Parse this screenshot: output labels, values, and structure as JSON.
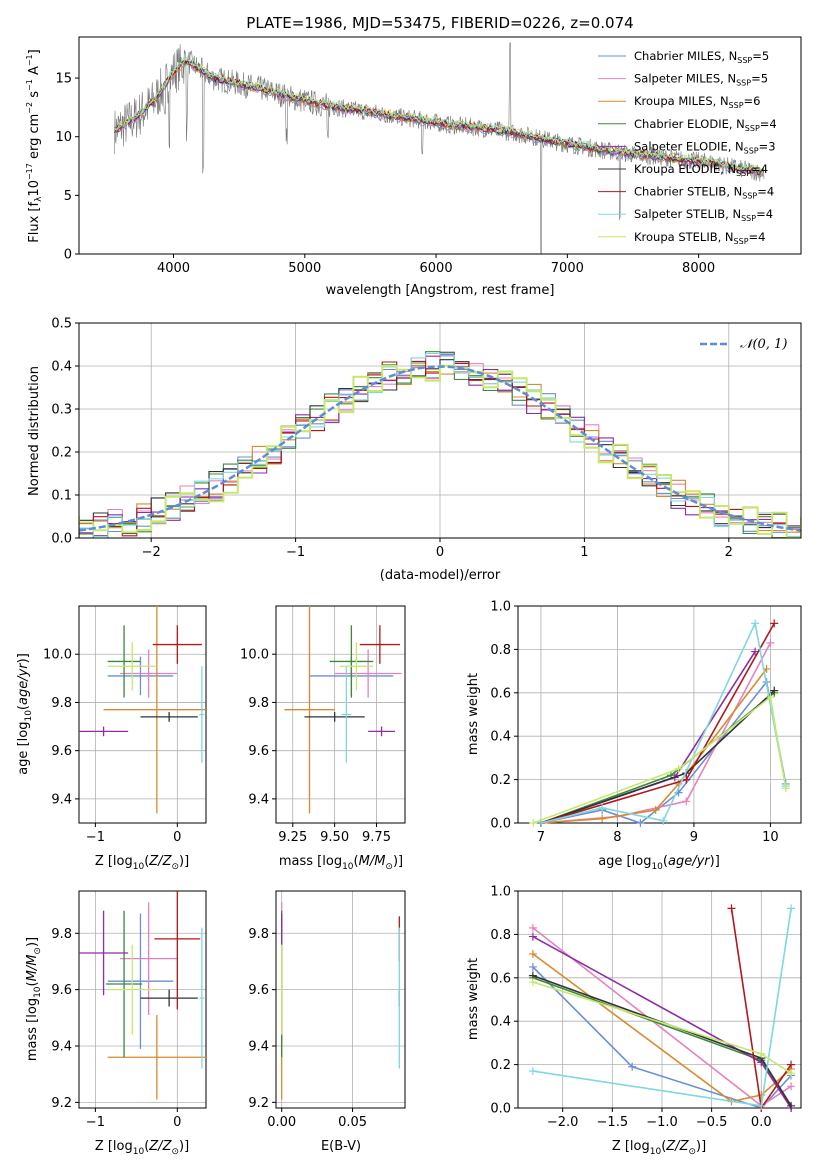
{
  "colors": [
    "#6a8fd6",
    "#e582bd",
    "#d98a2e",
    "#3b8a3b",
    "#8e2ca6",
    "#333333",
    "#b3171b",
    "#7fd7e0",
    "#c5e86c"
  ],
  "chart_data": [
    {
      "id": "spectrum",
      "type": "line",
      "title": "PLATE=1986, MJD=53475, FIBERID=0226, z=0.074",
      "xlabel": "wavelength [Angstrom, rest frame]",
      "ylabel": "Flux [fλ10⁻¹⁷ erg cm⁻² s⁻¹ A⁻¹]",
      "xlim": [
        3280,
        8780
      ],
      "ylim": [
        0,
        18.5
      ],
      "xticks": [
        4000,
        5000,
        6000,
        7000,
        8000
      ],
      "yticks": [
        0,
        5,
        10,
        15
      ],
      "legend_position": "top-right",
      "data_continuum": {
        "x": [
          3550,
          3700,
          3850,
          4000,
          4100,
          4300,
          4500,
          4700,
          4900,
          5100,
          5300,
          5500,
          5700,
          5900,
          6100,
          6300,
          6500,
          6700,
          6900,
          7100,
          7300,
          7500,
          7700,
          7900,
          8100,
          8300,
          8500
        ],
        "y": [
          10.5,
          11.5,
          13.0,
          15.5,
          16.5,
          15.0,
          14.5,
          14.0,
          13.3,
          12.8,
          12.4,
          12.1,
          11.7,
          11.4,
          11.0,
          10.8,
          10.5,
          10.1,
          9.6,
          9.2,
          8.8,
          8.5,
          8.3,
          8.0,
          7.8,
          7.3,
          6.9
        ]
      },
      "model_legend": [
        "Chabrier MILES, N_SSP=5",
        "Salpeter MILES, N_SSP=5",
        "Kroupa MILES, N_SSP=6",
        "Chabrier ELODIE, N_SSP=4",
        "Salpeter ELODIE, N_SSP=3",
        "Kroupa ELODIE, N_SSP=4",
        "Chabrier STELIB, N_SSP=4",
        "Salpeter STELIB, N_SSP=4",
        "Kroupa STELIB, N_SSP=4"
      ]
    },
    {
      "id": "residuals",
      "type": "step",
      "xlabel": "(data-model)/error",
      "ylabel": "Normed distribution",
      "xlim": [
        -2.5,
        2.5
      ],
      "ylim": [
        0,
        0.5
      ],
      "xticks": [
        -2,
        -1,
        0,
        1,
        2
      ],
      "yticks": [
        0.0,
        0.1,
        0.2,
        0.3,
        0.4,
        0.5
      ],
      "reference_curve": "N(0,1)",
      "legend_position": "top-right"
    },
    {
      "id": "age_vs_Z",
      "type": "errorbar",
      "xlabel": "Z [log10(Z/Z⊙)]",
      "ylabel": "age  [log10(age/yr)]",
      "xlim": [
        -1.2,
        0.35
      ],
      "ylim": [
        9.3,
        10.2
      ],
      "xticks": [
        -1,
        0
      ],
      "yticks": [
        9.4,
        9.6,
        9.8,
        10.0
      ],
      "points": [
        {
          "x": -0.45,
          "y": 9.91,
          "xerr": 0.4,
          "yerr": 0.08,
          "c": 0
        },
        {
          "x": -0.35,
          "y": 9.92,
          "xerr": 0.35,
          "yerr": 0.1,
          "c": 1
        },
        {
          "x": -0.25,
          "y": 9.77,
          "xerr": 0.65,
          "yerr": 0.43,
          "c": 2
        },
        {
          "x": -0.65,
          "y": 9.97,
          "xerr": 0.2,
          "yerr": 0.15,
          "c": 3
        },
        {
          "x": -0.9,
          "y": 9.68,
          "xerr": 0.3,
          "yerr": 0.02,
          "c": 4
        },
        {
          "x": -0.1,
          "y": 9.74,
          "xerr": 0.35,
          "yerr": 0.02,
          "c": 5
        },
        {
          "x": 0.0,
          "y": 10.04,
          "xerr": 0.3,
          "yerr": 0.08,
          "c": 6
        },
        {
          "x": 0.3,
          "y": 9.75,
          "xerr": 0.03,
          "yerr": 0.2,
          "c": 7
        },
        {
          "x": -0.55,
          "y": 9.95,
          "xerr": 0.3,
          "yerr": 0.1,
          "c": 8
        }
      ]
    },
    {
      "id": "age_vs_mass",
      "type": "errorbar",
      "xlabel": "mass [log10(M/M⊙)]",
      "ylabel": "",
      "xlim": [
        9.15,
        9.92
      ],
      "ylim": [
        9.3,
        10.2
      ],
      "xticks": [
        9.25,
        9.5,
        9.75
      ],
      "yticks": [
        9.4,
        9.6,
        9.8,
        10.0
      ],
      "points": [
        {
          "x": 9.6,
          "y": 9.91,
          "xerr": 0.25,
          "yerr": 0.08,
          "c": 0
        },
        {
          "x": 9.7,
          "y": 9.92,
          "xerr": 0.2,
          "yerr": 0.1,
          "c": 1
        },
        {
          "x": 9.35,
          "y": 9.77,
          "xerr": 0.15,
          "yerr": 0.43,
          "c": 2
        },
        {
          "x": 9.6,
          "y": 9.97,
          "xerr": 0.13,
          "yerr": 0.15,
          "c": 3
        },
        {
          "x": 9.78,
          "y": 9.68,
          "xerr": 0.08,
          "yerr": 0.02,
          "c": 4
        },
        {
          "x": 9.5,
          "y": 9.74,
          "xerr": 0.18,
          "yerr": 0.02,
          "c": 5
        },
        {
          "x": 9.77,
          "y": 10.04,
          "xerr": 0.12,
          "yerr": 0.08,
          "c": 6
        },
        {
          "x": 9.57,
          "y": 9.75,
          "xerr": 0.03,
          "yerr": 0.2,
          "c": 7
        },
        {
          "x": 9.63,
          "y": 9.95,
          "xerr": 0.1,
          "yerr": 0.1,
          "c": 8
        }
      ]
    },
    {
      "id": "mass_weight_vs_age",
      "type": "line",
      "xlabel": "age  [log10(age/yr)]",
      "ylabel": "mass weight",
      "xlim": [
        6.7,
        10.4
      ],
      "ylim": [
        0,
        1.0
      ],
      "xticks": [
        7,
        8,
        9,
        10
      ],
      "yticks": [
        0.0,
        0.2,
        0.4,
        0.6,
        0.8,
        1.0
      ],
      "series": [
        {
          "c": 0,
          "x": [
            7.0,
            7.8,
            8.3,
            8.8,
            9.95,
            10.2
          ],
          "y": [
            0.0,
            0.06,
            0.0,
            0.14,
            0.65,
            0.18
          ]
        },
        {
          "c": 1,
          "x": [
            7.0,
            8.0,
            8.9,
            10.0
          ],
          "y": [
            0.0,
            0.03,
            0.1,
            0.83
          ]
        },
        {
          "c": 2,
          "x": [
            7.0,
            7.8,
            8.5,
            8.8,
            9.95
          ],
          "y": [
            0.0,
            0.02,
            0.06,
            0.18,
            0.71
          ]
        },
        {
          "c": 3,
          "x": [
            7.0,
            8.7,
            10.05
          ],
          "y": [
            0.0,
            0.22,
            0.6
          ]
        },
        {
          "c": 4,
          "x": [
            7.0,
            8.75,
            9.8
          ],
          "y": [
            0.0,
            0.21,
            0.79
          ]
        },
        {
          "c": 5,
          "x": [
            7.0,
            8.9,
            10.05
          ],
          "y": [
            0.0,
            0.23,
            0.61
          ]
        },
        {
          "c": 6,
          "x": [
            7.0,
            8.9,
            10.05
          ],
          "y": [
            0.0,
            0.2,
            0.92
          ]
        },
        {
          "c": 7,
          "x": [
            7.0,
            7.8,
            8.6,
            9.8,
            10.2
          ],
          "y": [
            0.0,
            0.07,
            0.01,
            0.92,
            0.17
          ]
        },
        {
          "c": 8,
          "x": [
            6.9,
            8.8,
            10.0,
            10.2
          ],
          "y": [
            0.0,
            0.25,
            0.58,
            0.16
          ]
        }
      ]
    },
    {
      "id": "mass_vs_Z",
      "type": "errorbar",
      "xlabel": "Z [log10(Z/Z⊙)]",
      "ylabel": "mass [log10(M/M⊙)]",
      "xlim": [
        -1.2,
        0.35
      ],
      "ylim": [
        9.18,
        9.95
      ],
      "xticks": [
        -1,
        0
      ],
      "yticks": [
        9.2,
        9.4,
        9.6,
        9.8
      ],
      "points": [
        {
          "x": -0.45,
          "y": 9.63,
          "xerr": 0.4,
          "yerr": 0.24,
          "c": 0
        },
        {
          "x": -0.35,
          "y": 9.71,
          "xerr": 0.35,
          "yerr": 0.2,
          "c": 1
        },
        {
          "x": -0.25,
          "y": 9.36,
          "xerr": 0.6,
          "yerr": 0.15,
          "c": 2
        },
        {
          "x": -0.65,
          "y": 9.62,
          "xerr": 0.22,
          "yerr": 0.26,
          "c": 3
        },
        {
          "x": -0.9,
          "y": 9.73,
          "xerr": 0.3,
          "yerr": 0.15,
          "c": 4
        },
        {
          "x": -0.1,
          "y": 9.57,
          "xerr": 0.35,
          "yerr": 0.03,
          "c": 5
        },
        {
          "x": 0.0,
          "y": 9.78,
          "xerr": 0.28,
          "yerr": 0.25,
          "c": 6
        },
        {
          "x": 0.3,
          "y": 9.57,
          "xerr": 0.03,
          "yerr": 0.25,
          "c": 7
        },
        {
          "x": -0.55,
          "y": 9.6,
          "xerr": 0.3,
          "yerr": 0.16,
          "c": 8
        }
      ]
    },
    {
      "id": "mass_vs_ebv",
      "type": "errorbar",
      "xlabel": "E(B-V)",
      "ylabel": "",
      "xlim": [
        -0.004,
        0.087
      ],
      "ylim": [
        9.18,
        9.95
      ],
      "xticks": [
        0.0,
        0.05
      ],
      "yticks": [
        9.2,
        9.4,
        9.6,
        9.8
      ],
      "points": [
        {
          "x": 0.0,
          "y": 9.63,
          "xerr": 0,
          "yerr": 0.24,
          "c": 0
        },
        {
          "x": 0.0,
          "y": 9.71,
          "xerr": 0,
          "yerr": 0.2,
          "c": 1
        },
        {
          "x": 0.0,
          "y": 9.36,
          "xerr": 0,
          "yerr": 0.15,
          "c": 2
        },
        {
          "x": 0.0,
          "y": 9.62,
          "xerr": 0,
          "yerr": 0.26,
          "c": 3
        },
        {
          "x": 0.0,
          "y": 9.8,
          "xerr": 0,
          "yerr": 0.07,
          "c": 4
        },
        {
          "x": 0.083,
          "y": 9.57,
          "xerr": 0,
          "yerr": 0.03,
          "c": 5
        },
        {
          "x": 0.083,
          "y": 9.78,
          "xerr": 0,
          "yerr": 0.08,
          "c": 6
        },
        {
          "x": 0.083,
          "y": 9.57,
          "xerr": 0,
          "yerr": 0.25,
          "c": 7
        },
        {
          "x": 0.0,
          "y": 9.6,
          "xerr": 0,
          "yerr": 0.16,
          "c": 8
        }
      ]
    },
    {
      "id": "mass_weight_vs_Z",
      "type": "line",
      "xlabel": "Z [log10(Z/Z⊙)]",
      "ylabel": "mass weight",
      "xlim": [
        -2.45,
        0.4
      ],
      "ylim": [
        0,
        1.0
      ],
      "xticks": [
        -2.0,
        -1.5,
        -1.0,
        -0.5,
        0.0
      ],
      "yticks": [
        0.0,
        0.2,
        0.4,
        0.6,
        0.8,
        1.0
      ],
      "series": [
        {
          "c": 0,
          "x": [
            -2.3,
            -1.3,
            0.0,
            0.3
          ],
          "y": [
            0.65,
            0.19,
            0.0,
            0.15
          ]
        },
        {
          "c": 1,
          "x": [
            -2.3,
            0.0,
            0.3
          ],
          "y": [
            0.83,
            0.01,
            0.1
          ]
        },
        {
          "c": 2,
          "x": [
            -2.3,
            -0.3,
            0.0,
            0.3
          ],
          "y": [
            0.71,
            0.03,
            0.06,
            0.18
          ]
        },
        {
          "c": 3,
          "x": [
            -2.3,
            0.0,
            0.3
          ],
          "y": [
            0.6,
            0.22,
            0.0
          ]
        },
        {
          "c": 4,
          "x": [
            -2.3,
            0.0,
            0.3
          ],
          "y": [
            0.79,
            0.21,
            0.0
          ]
        },
        {
          "c": 5,
          "x": [
            -2.3,
            0.0,
            0.3
          ],
          "y": [
            0.61,
            0.23,
            0.01
          ]
        },
        {
          "c": 6,
          "x": [
            -0.3,
            0.0,
            0.3
          ],
          "y": [
            0.92,
            0.0,
            0.2
          ]
        },
        {
          "c": 7,
          "x": [
            -2.3,
            0.0,
            0.3
          ],
          "y": [
            0.17,
            0.01,
            0.92
          ]
        },
        {
          "c": 8,
          "x": [
            -2.3,
            0.0,
            0.3
          ],
          "y": [
            0.58,
            0.25,
            0.16
          ]
        }
      ]
    }
  ]
}
